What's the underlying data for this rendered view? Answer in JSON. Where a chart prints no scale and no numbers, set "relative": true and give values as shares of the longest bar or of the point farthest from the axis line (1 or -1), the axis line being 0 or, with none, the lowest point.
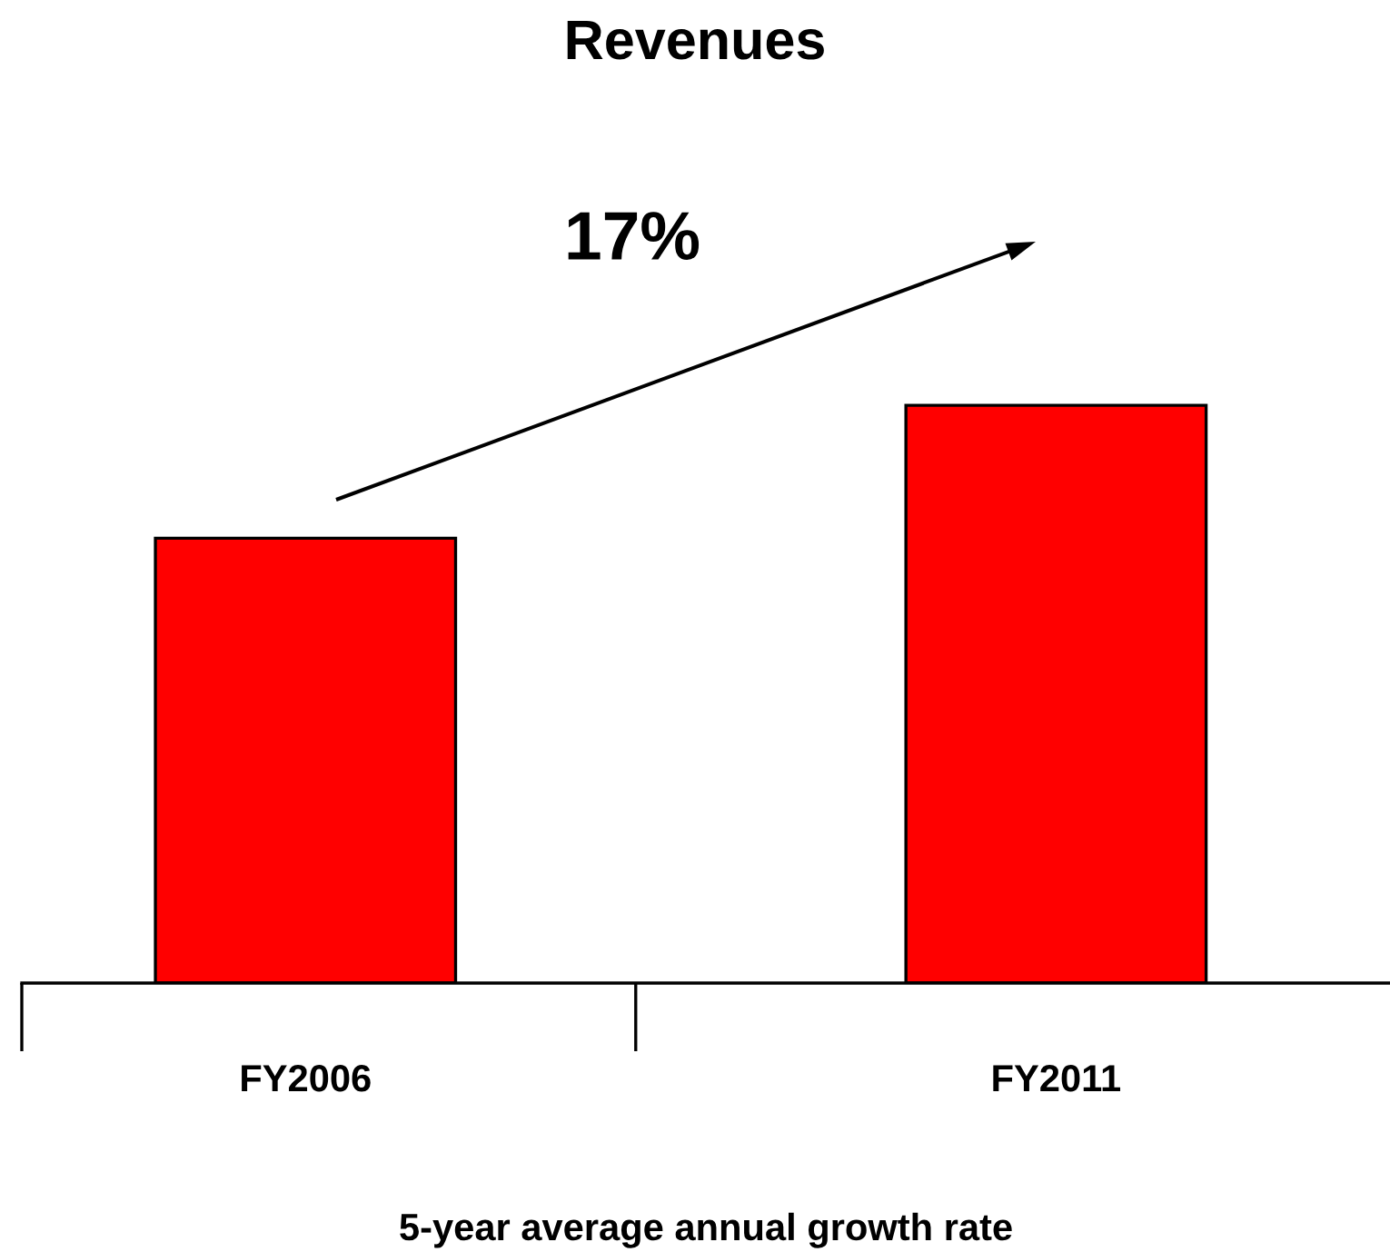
{
  "chart_data": {
    "type": "bar",
    "title": "Revenues",
    "xlabel": "5-year average annual growth rate",
    "categories": [
      "FY2006",
      "FY2011"
    ],
    "values": [
      0.77,
      1
    ],
    "color": "#ff0000",
    "relative": true,
    "annotations": [
      "17%"
    ]
  }
}
